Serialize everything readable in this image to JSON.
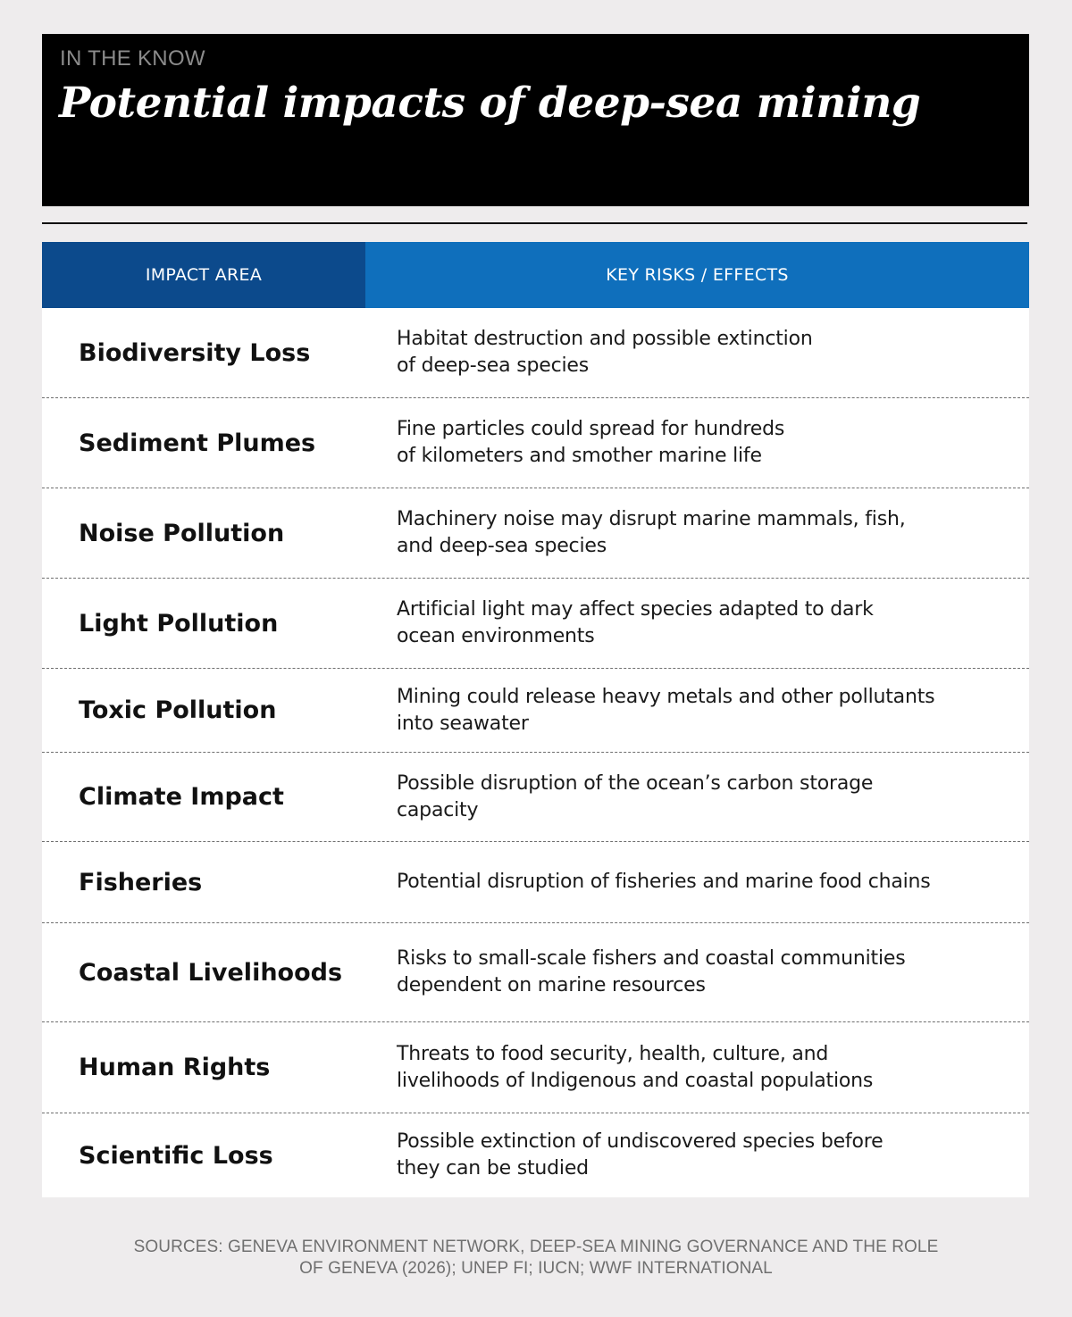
{
  "header": {
    "kicker": "IN THE KNOW",
    "title": "Potential impacts of deep-sea mining"
  },
  "table": {
    "columns": [
      "IMPACT AREA",
      "KEY RISKS / EFFECTS"
    ],
    "rows": [
      {
        "area": "Biodiversity Loss",
        "risk": [
          "Habitat destruction and possible extinction",
          "of deep-sea species"
        ]
      },
      {
        "area": "Sediment Plumes",
        "risk": [
          "Fine particles could spread for hundreds",
          "of kilometers and smother marine life"
        ]
      },
      {
        "area": "Noise Pollution",
        "risk": [
          "Machinery noise may disrupt marine mammals, fish,",
          "and deep-sea species"
        ]
      },
      {
        "area": "Light Pollution",
        "risk": [
          "Artificial light may affect species adapted to dark",
          "ocean environments"
        ]
      },
      {
        "area": "Toxic Pollution",
        "risk": [
          "Mining could release heavy metals and other pollutants",
          "into seawater"
        ]
      },
      {
        "area": "Climate Impact",
        "risk": [
          "Possible disruption of the ocean’s carbon storage",
          "capacity"
        ]
      },
      {
        "area": "Fisheries",
        "risk": [
          "Potential disruption of fisheries and marine food chains"
        ]
      },
      {
        "area": "Coastal Livelihoods",
        "risk": [
          "Risks to small-scale fishers and coastal communities",
          "dependent on marine resources"
        ]
      },
      {
        "area": "Human Rights",
        "risk": [
          "Threats to food security, health, culture, and",
          "livelihoods of Indigenous and coastal populations"
        ]
      },
      {
        "area": "Scientific Loss",
        "risk": [
          "Possible extinction of undiscovered species before",
          "they can be studied"
        ]
      }
    ]
  },
  "sources": [
    "SOURCES: GENEVA ENVIRONMENT NETWORK, DEEP-SEA MINING GOVERNANCE AND THE ROLE",
    "OF GENEVA (2026); UNEP FI; IUCN; WWF INTERNATIONAL"
  ]
}
